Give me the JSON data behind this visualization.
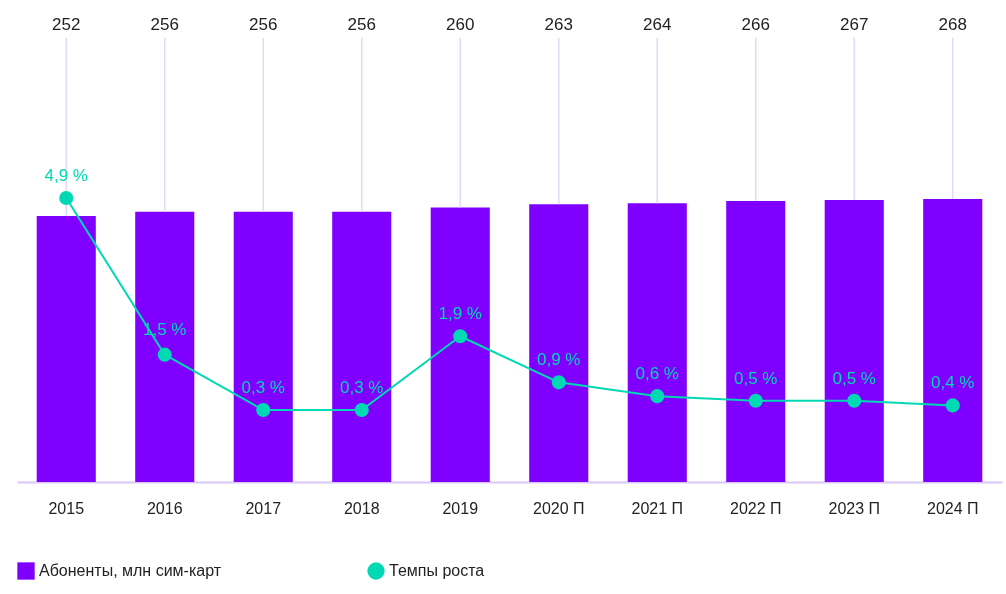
{
  "chart_data": {
    "type": "bar",
    "categories": [
      "2015",
      "2016",
      "2017",
      "2018",
      "2019",
      "2020 П",
      "2021 П",
      "2022 П",
      "2023 П",
      "2024 П"
    ],
    "series": [
      {
        "name": "Абоненты, млн сим-карт",
        "color": "#7f00ff",
        "values": [
          252,
          256,
          256,
          256,
          260,
          263,
          264,
          266,
          267,
          268
        ]
      },
      {
        "name": "Темпы роста",
        "type": "line",
        "axis": "y2",
        "color": "#00d9b3",
        "marker": "circle",
        "values": [
          4.9,
          1.5,
          0.3,
          0.3,
          1.9,
          0.9,
          0.6,
          0.5,
          0.5,
          0.4
        ],
        "value_labels": [
          "4,9 %",
          "1,5 %",
          "0,3 %",
          "0,3 %",
          "1,9 %",
          "0,9 %",
          "0,6 %",
          "0,5 %",
          "0,5 %",
          "0,4 %"
        ]
      }
    ],
    "data_labels": true,
    "tick_labels": "x",
    "grid": false,
    "legend": "bottom left"
  }
}
